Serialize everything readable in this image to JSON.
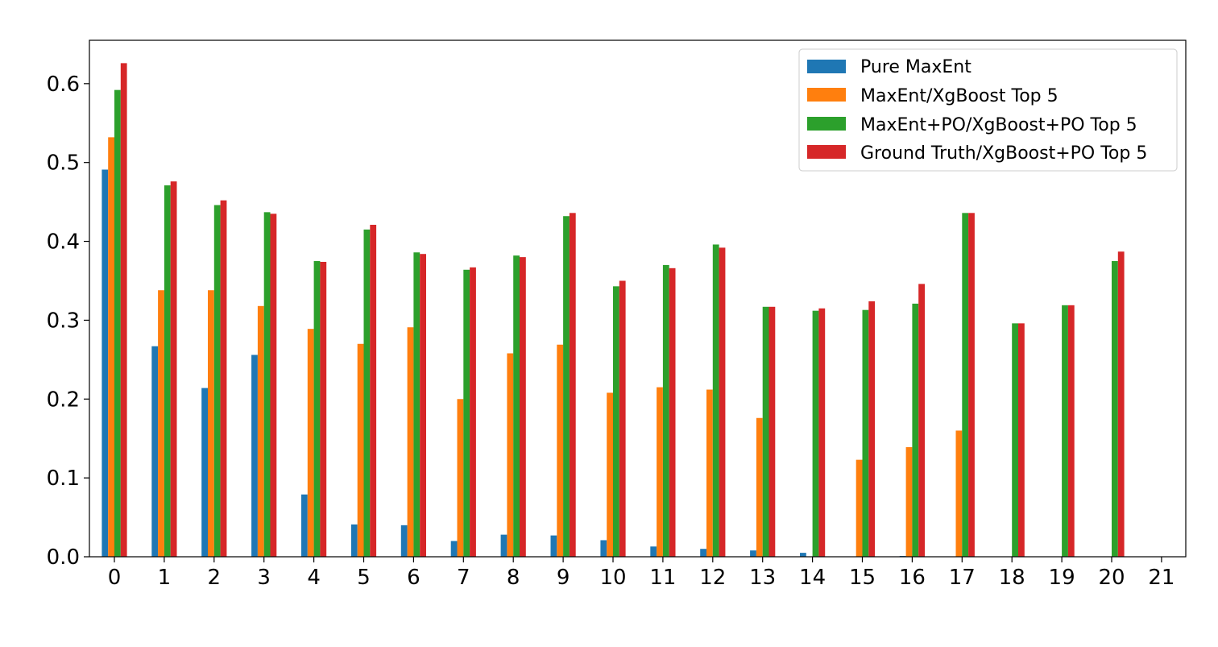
{
  "chart_data": {
    "type": "bar",
    "categories": [
      "0",
      "1",
      "2",
      "3",
      "4",
      "5",
      "6",
      "7",
      "8",
      "9",
      "10",
      "11",
      "12",
      "13",
      "14",
      "15",
      "16",
      "17",
      "18",
      "19",
      "20",
      "21"
    ],
    "ylim": [
      0,
      0.655
    ],
    "yticks": [
      "0.0",
      "0.1",
      "0.2",
      "0.3",
      "0.4",
      "0.5",
      "0.6"
    ],
    "legend_position": "top-right",
    "grid": false,
    "series": [
      {
        "name": "Pure MaxEnt",
        "color": "#1f77b4",
        "values": [
          0.491,
          0.267,
          0.214,
          0.256,
          0.079,
          0.041,
          0.04,
          0.02,
          0.028,
          0.027,
          0.021,
          0.013,
          0.01,
          0.008,
          0.005,
          0,
          0.001,
          0,
          0,
          0,
          0,
          0
        ]
      },
      {
        "name": "MaxEnt/XgBoost Top 5",
        "color": "#ff7f0e",
        "values": [
          0.532,
          0.338,
          0.338,
          0.318,
          0.289,
          0.27,
          0.291,
          0.2,
          0.258,
          0.269,
          0.208,
          0.215,
          0.212,
          0.176,
          0,
          0.123,
          0.139,
          0.16,
          0,
          0,
          0,
          0
        ]
      },
      {
        "name": "MaxEnt+PO/XgBoost+PO Top 5",
        "color": "#2ca02c",
        "values": [
          0.592,
          0.471,
          0.446,
          0.437,
          0.375,
          0.415,
          0.386,
          0.364,
          0.382,
          0.432,
          0.343,
          0.37,
          0.396,
          0.317,
          0.312,
          0.313,
          0.321,
          0.436,
          0.296,
          0.319,
          0.375,
          0
        ]
      },
      {
        "name": "Ground Truth/XgBoost+PO Top 5",
        "color": "#d62728",
        "values": [
          0.626,
          0.476,
          0.452,
          0.435,
          0.374,
          0.421,
          0.384,
          0.367,
          0.38,
          0.436,
          0.35,
          0.366,
          0.392,
          0.317,
          0.315,
          0.324,
          0.346,
          0.436,
          0.296,
          0.319,
          0.387,
          0
        ]
      }
    ]
  }
}
